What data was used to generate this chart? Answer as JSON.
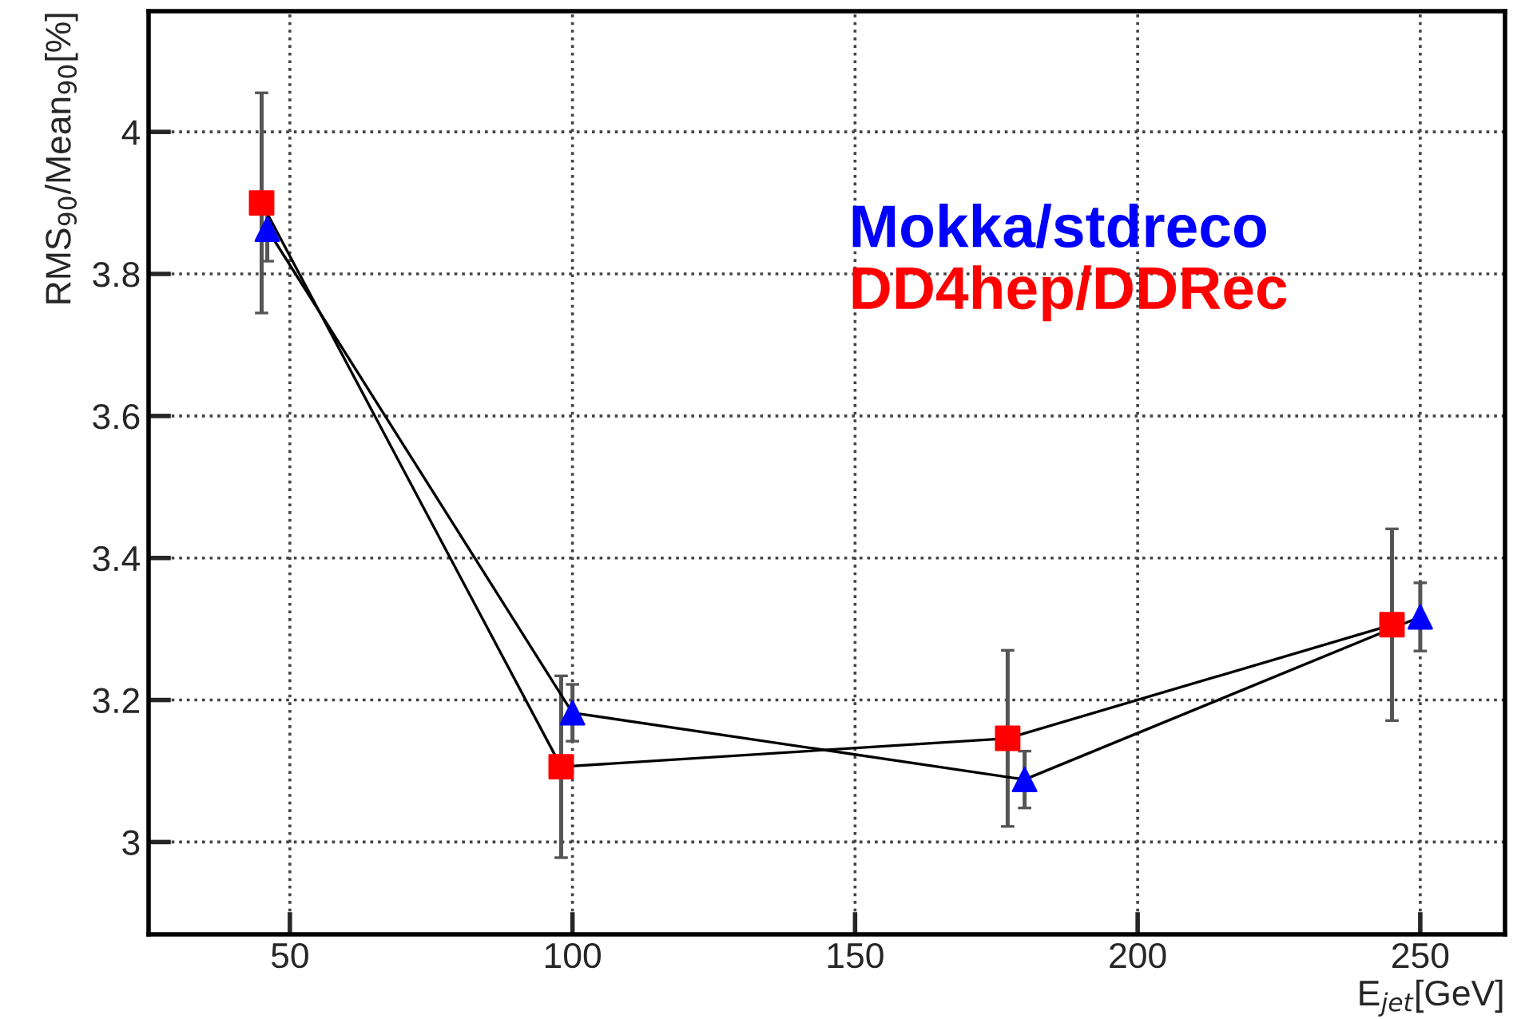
{
  "chart_data": {
    "type": "line",
    "xlabel": "E$_{jet}$[GeV]",
    "ylabel": "RMS$_{90}$/Mean$_{90}$[%]",
    "xlim": [
      25,
      265
    ],
    "xticks": [
      50,
      100,
      150,
      200,
      250
    ],
    "ylim": [
      2.87,
      4.17
    ],
    "yticks": [
      3,
      3.2,
      3.4,
      3.6,
      3.8,
      4
    ],
    "grid": true,
    "legend": "top right",
    "series": [
      {
        "name": "Mokka/stdreco",
        "color": "#0000ff",
        "marker": "triangle",
        "x": [
          46,
          100,
          180,
          250
        ],
        "values": [
          3.863,
          3.182,
          3.088,
          3.317
        ],
        "errors": [
          0.045,
          0.04,
          0.04,
          0.048
        ]
      },
      {
        "name": "DD4hep/DDRec",
        "color": "#ff0000",
        "marker": "square",
        "x": [
          45,
          98,
          177,
          245
        ],
        "values": [
          3.9,
          3.106,
          3.146,
          3.306
        ],
        "errors": [
          0.155,
          0.128,
          0.124,
          0.135
        ]
      }
    ]
  }
}
